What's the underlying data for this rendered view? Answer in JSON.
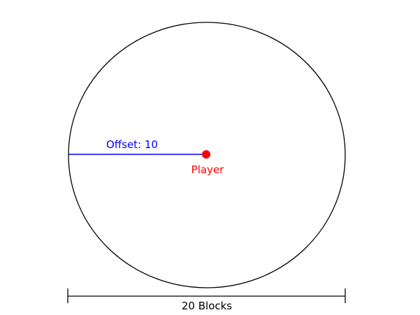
{
  "labels": {
    "offset": "Offset: 10",
    "player": "Player",
    "width": "20 Blocks"
  },
  "colors": {
    "circle": "#000000",
    "offset": "#0000ff",
    "player": "#ff0000",
    "dimension": "#000000"
  }
}
